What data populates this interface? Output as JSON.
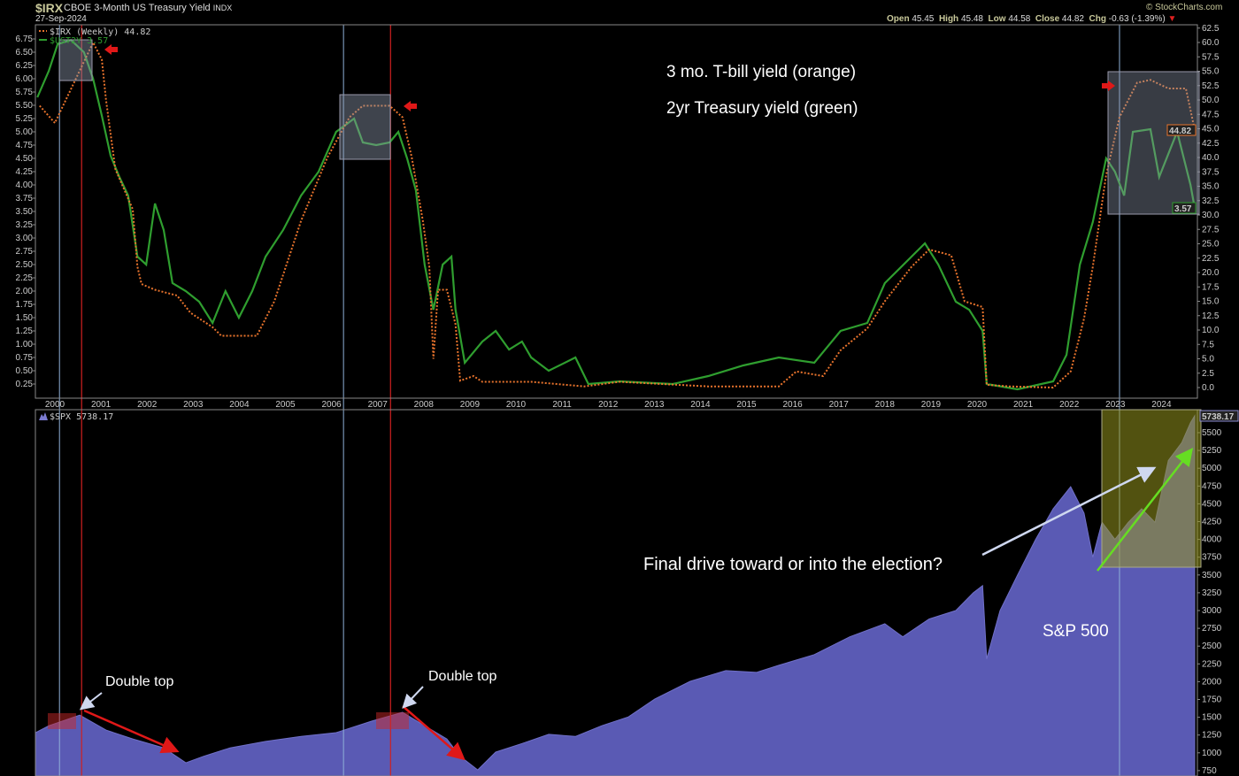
{
  "header": {
    "symbol": "$IRX",
    "name": "CBOE 3-Month US Treasury Yield",
    "exchange": "INDX",
    "date": "27-Sep-2024",
    "brand": "© StockCharts.com",
    "open_label": "Open",
    "open": "45.45",
    "high_label": "High",
    "high": "45.48",
    "low_label": "Low",
    "low": "44.58",
    "close_label": "Close",
    "close": "44.82",
    "chg_label": "Chg",
    "chg": "-0.63 (-1.39%)",
    "chg_direction": "down"
  },
  "chart_data": [
    {
      "type": "line",
      "panel": "top",
      "legend": [
        {
          "label": "$IRX (Weekly) 44.82",
          "color": "#e8732c",
          "style": "dotted"
        },
        {
          "label": "$UST2Y 3.57",
          "color": "#2f9e2f",
          "style": "solid"
        }
      ],
      "x_ticks": [
        "2000",
        "2001",
        "2002",
        "2003",
        "2004",
        "2005",
        "2006",
        "2007",
        "2008",
        "2009",
        "2010",
        "2011",
        "2012",
        "2013",
        "2014",
        "2015",
        "2016",
        "2017",
        "2018",
        "2019",
        "2020",
        "2021",
        "2022",
        "2023",
        "2024"
      ],
      "left_axis": {
        "ylim": [
          0,
          7.0
        ],
        "ticks": [
          "0.25",
          "0.50",
          "0.75",
          "1.00",
          "1.25",
          "1.50",
          "1.75",
          "2.00",
          "2.25",
          "2.50",
          "2.75",
          "3.00",
          "3.25",
          "3.50",
          "3.75",
          "4.00",
          "4.25",
          "4.50",
          "4.75",
          "5.00",
          "5.25",
          "5.50",
          "5.75",
          "6.00",
          "6.25",
          "6.50",
          "6.75"
        ]
      },
      "right_axis": {
        "ylim": [
          0,
          62.5
        ],
        "ticks": [
          "0.0",
          "2.5",
          "5.0",
          "7.5",
          "10.0",
          "12.5",
          "15.0",
          "17.5",
          "20.0",
          "22.5",
          "25.0",
          "27.5",
          "30.0",
          "32.5",
          "35.0",
          "37.5",
          "40.0",
          "42.5",
          "45.0",
          "47.5",
          "50.0",
          "52.5",
          "55.0",
          "57.5",
          "60.0",
          "62.5"
        ]
      },
      "series": [
        {
          "name": "$IRX",
          "axis": "right",
          "last_label": "44.82",
          "points": [
            [
              1999.67,
              49
            ],
            [
              2000.0,
              46
            ],
            [
              2000.83,
              60
            ],
            [
              2001.02,
              57
            ],
            [
              2001.11,
              50
            ],
            [
              2001.31,
              38
            ],
            [
              2001.69,
              31
            ],
            [
              2001.79,
              21
            ],
            [
              2001.88,
              18
            ],
            [
              2002.17,
              17
            ],
            [
              2002.65,
              16
            ],
            [
              2002.94,
              13
            ],
            [
              2003.42,
              10.5
            ],
            [
              2003.61,
              9
            ],
            [
              2004.38,
              9
            ],
            [
              2004.76,
              15
            ],
            [
              2005.34,
              29
            ],
            [
              2005.91,
              40
            ],
            [
              2006.39,
              47
            ],
            [
              2006.68,
              49
            ],
            [
              2007.26,
              49
            ],
            [
              2007.54,
              47
            ],
            [
              2007.74,
              40
            ],
            [
              2007.98,
              29
            ],
            [
              2008.12,
              21
            ],
            [
              2008.21,
              5
            ],
            [
              2008.31,
              17
            ],
            [
              2008.5,
              17
            ],
            [
              2008.69,
              11
            ],
            [
              2008.79,
              1.2
            ],
            [
              2009.08,
              2
            ],
            [
              2009.27,
              1
            ],
            [
              2010.33,
              1
            ],
            [
              2011.48,
              0.2
            ],
            [
              2012.25,
              1
            ],
            [
              2014.17,
              0.2
            ],
            [
              2015.7,
              0.2
            ],
            [
              2016.08,
              2.8
            ],
            [
              2016.66,
              2
            ],
            [
              2017.04,
              6.5
            ],
            [
              2017.62,
              10.3
            ],
            [
              2018.0,
              15
            ],
            [
              2018.58,
              21
            ],
            [
              2018.96,
              24
            ],
            [
              2019.44,
              23
            ],
            [
              2019.73,
              15
            ],
            [
              2020.12,
              14
            ],
            [
              2020.21,
              0.5
            ],
            [
              2020.69,
              0.2
            ],
            [
              2021.65,
              0
            ],
            [
              2022.03,
              2.8
            ],
            [
              2022.32,
              12
            ],
            [
              2022.51,
              21
            ],
            [
              2022.8,
              37
            ],
            [
              2023.09,
              47
            ],
            [
              2023.47,
              53
            ],
            [
              2023.76,
              53.5
            ],
            [
              2024.15,
              52
            ],
            [
              2024.53,
              52
            ],
            [
              2024.72,
              44.82
            ]
          ]
        },
        {
          "name": "$UST2Y",
          "axis": "left",
          "last_label": "3.57",
          "points": [
            [
              1999.62,
              5.65
            ],
            [
              1999.87,
              6.15
            ],
            [
              2000.06,
              6.65
            ],
            [
              2000.35,
              6.73
            ],
            [
              2000.63,
              6.5
            ],
            [
              2000.83,
              6.0
            ],
            [
              2001.02,
              5.3
            ],
            [
              2001.21,
              4.55
            ],
            [
              2001.4,
              4.15
            ],
            [
              2001.59,
              3.8
            ],
            [
              2001.79,
              2.65
            ],
            [
              2001.98,
              2.5
            ],
            [
              2002.17,
              3.65
            ],
            [
              2002.36,
              3.15
            ],
            [
              2002.55,
              2.15
            ],
            [
              2002.84,
              2.0
            ],
            [
              2003.13,
              1.8
            ],
            [
              2003.42,
              1.4
            ],
            [
              2003.7,
              2.0
            ],
            [
              2003.99,
              1.5
            ],
            [
              2004.28,
              2.0
            ],
            [
              2004.57,
              2.65
            ],
            [
              2004.95,
              3.15
            ],
            [
              2005.34,
              3.8
            ],
            [
              2005.72,
              4.25
            ],
            [
              2006.1,
              5.0
            ],
            [
              2006.49,
              5.25
            ],
            [
              2006.68,
              4.8
            ],
            [
              2006.97,
              4.75
            ],
            [
              2007.26,
              4.8
            ],
            [
              2007.45,
              5.0
            ],
            [
              2007.64,
              4.5
            ],
            [
              2007.83,
              3.9
            ],
            [
              2008.02,
              2.5
            ],
            [
              2008.21,
              1.65
            ],
            [
              2008.41,
              2.5
            ],
            [
              2008.6,
              2.65
            ],
            [
              2008.69,
              1.65
            ],
            [
              2008.89,
              0.65
            ],
            [
              2009.27,
              1.05
            ],
            [
              2009.56,
              1.25
            ],
            [
              2009.85,
              0.9
            ],
            [
              2010.13,
              1.05
            ],
            [
              2010.33,
              0.75
            ],
            [
              2010.71,
              0.5
            ],
            [
              2011.29,
              0.75
            ],
            [
              2011.57,
              0.25
            ],
            [
              2012.25,
              0.3
            ],
            [
              2013.4,
              0.25
            ],
            [
              2014.17,
              0.4
            ],
            [
              2014.93,
              0.6
            ],
            [
              2015.7,
              0.75
            ],
            [
              2016.47,
              0.65
            ],
            [
              2017.04,
              1.25
            ],
            [
              2017.62,
              1.4
            ],
            [
              2018.0,
              2.15
            ],
            [
              2018.58,
              2.65
            ],
            [
              2018.87,
              2.9
            ],
            [
              2019.16,
              2.5
            ],
            [
              2019.54,
              1.8
            ],
            [
              2019.83,
              1.65
            ],
            [
              2020.12,
              1.25
            ],
            [
              2020.21,
              0.25
            ],
            [
              2020.88,
              0.15
            ],
            [
              2021.65,
              0.3
            ],
            [
              2021.94,
              0.8
            ],
            [
              2022.23,
              2.5
            ],
            [
              2022.51,
              3.3
            ],
            [
              2022.8,
              4.5
            ],
            [
              2022.99,
              4.25
            ],
            [
              2023.19,
              3.8
            ],
            [
              2023.38,
              5.0
            ],
            [
              2023.76,
              5.05
            ],
            [
              2023.95,
              4.15
            ],
            [
              2024.34,
              5.0
            ],
            [
              2024.63,
              4.0
            ],
            [
              2024.72,
              3.57
            ]
          ]
        }
      ],
      "annotations": [
        "3 mo. T-bill yield (orange)",
        "2yr Treasury yield (green)"
      ]
    },
    {
      "type": "area",
      "panel": "bottom",
      "legend": [
        {
          "label": "$SPX 5738.17",
          "color": "#5a5ab4"
        }
      ],
      "right_axis": {
        "ylim": [
          700,
          5800
        ],
        "ticks": [
          "750",
          "1000",
          "1250",
          "1500",
          "1750",
          "2000",
          "2250",
          "2500",
          "2750",
          "3000",
          "3250",
          "3500",
          "3750",
          "4000",
          "4250",
          "4500",
          "4750",
          "5000",
          "5250",
          "5500"
        ]
      },
      "series": [
        {
          "name": "$SPX",
          "last_label": "5738.17",
          "points": [
            [
              1999.58,
              1283
            ],
            [
              1999.87,
              1380
            ],
            [
              2000.54,
              1530
            ],
            [
              2001.11,
              1320
            ],
            [
              2001.69,
              1195
            ],
            [
              2002.36,
              1070
            ],
            [
              2002.84,
              860
            ],
            [
              2003.22,
              950
            ],
            [
              2003.8,
              1070
            ],
            [
              2004.57,
              1160
            ],
            [
              2005.34,
              1230
            ],
            [
              2006.1,
              1283
            ],
            [
              2006.87,
              1445
            ],
            [
              2007.54,
              1570
            ],
            [
              2008.02,
              1380
            ],
            [
              2008.5,
              1195
            ],
            [
              2008.79,
              950
            ],
            [
              2009.17,
              760
            ],
            [
              2009.56,
              1010
            ],
            [
              2010.13,
              1130
            ],
            [
              2010.71,
              1260
            ],
            [
              2011.29,
              1230
            ],
            [
              2011.86,
              1380
            ],
            [
              2012.44,
              1505
            ],
            [
              2013.01,
              1755
            ],
            [
              2013.78,
              2005
            ],
            [
              2014.55,
              2155
            ],
            [
              2015.22,
              2130
            ],
            [
              2015.7,
              2230
            ],
            [
              2016.47,
              2380
            ],
            [
              2017.24,
              2630
            ],
            [
              2018.0,
              2815
            ],
            [
              2018.39,
              2630
            ],
            [
              2018.96,
              2880
            ],
            [
              2019.54,
              3000
            ],
            [
              2019.92,
              3250
            ],
            [
              2020.12,
              3350
            ],
            [
              2020.21,
              2320
            ],
            [
              2020.5,
              3000
            ],
            [
              2020.88,
              3500
            ],
            [
              2021.27,
              4000
            ],
            [
              2021.65,
              4430
            ],
            [
              2022.03,
              4740
            ],
            [
              2022.32,
              4370
            ],
            [
              2022.51,
              3750
            ],
            [
              2022.71,
              4240
            ],
            [
              2022.99,
              4000
            ],
            [
              2023.28,
              4240
            ],
            [
              2023.57,
              4430
            ],
            [
              2023.86,
              4240
            ],
            [
              2024.15,
              5110
            ],
            [
              2024.44,
              5360
            ],
            [
              2024.63,
              5640
            ],
            [
              2024.72,
              5738.17
            ]
          ]
        }
      ],
      "annotations": [
        "Final drive toward or into the election?",
        "S&P 500",
        "Double top",
        "Double top"
      ]
    }
  ],
  "markers": {
    "blue_lines": [
      2000.1,
      2006.26,
      2023.09
    ],
    "red_lines": [
      2000.58,
      2007.28
    ]
  }
}
